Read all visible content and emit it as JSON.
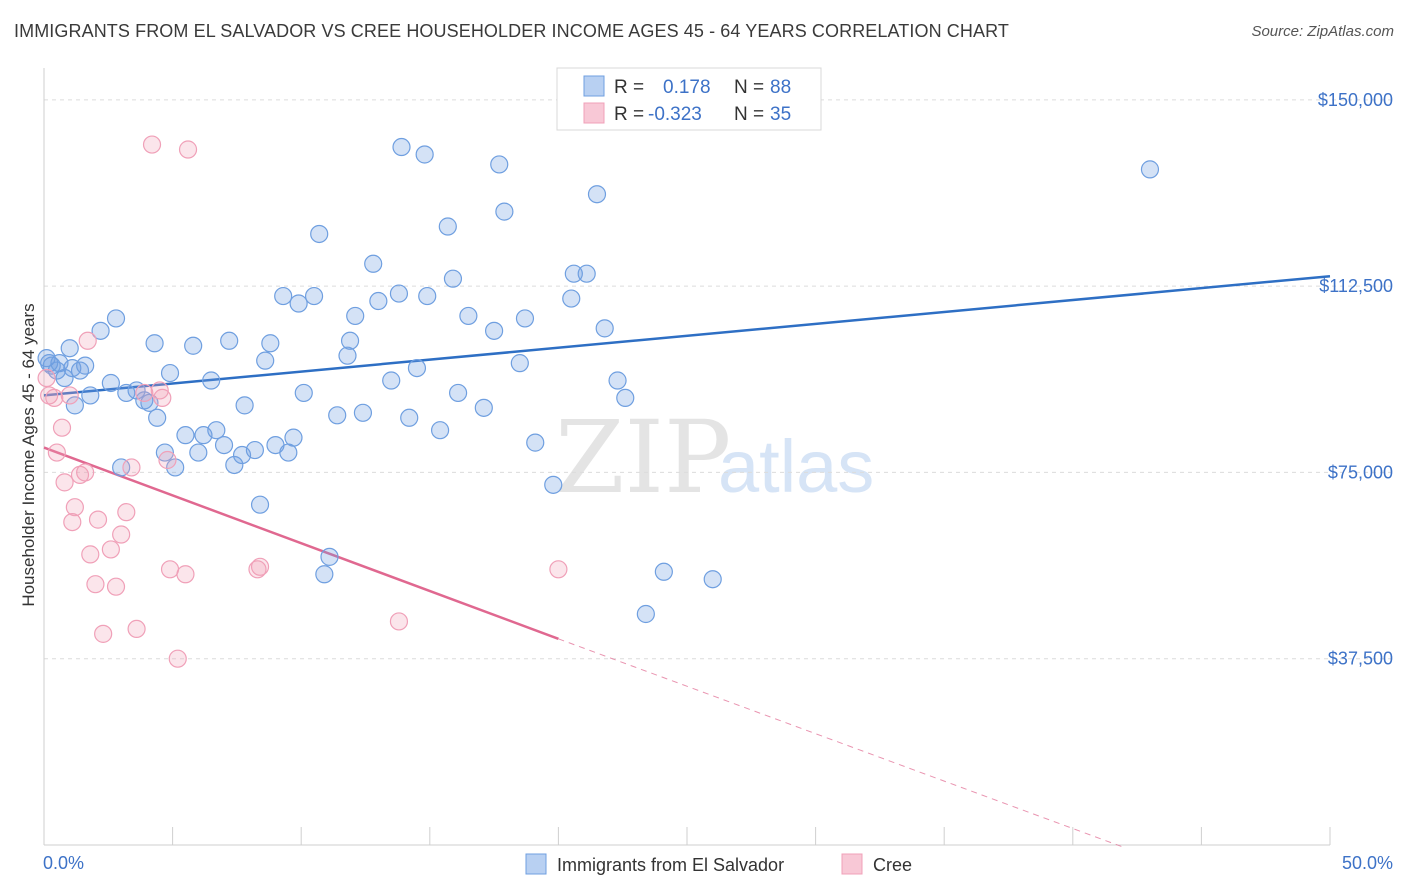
{
  "header": {
    "title": "IMMIGRANTS FROM EL SALVADOR VS CREE HOUSEHOLDER INCOME AGES 45 - 64 YEARS CORRELATION CHART",
    "source": "Source: ZipAtlas.com"
  },
  "watermark": {
    "zip": "ZIP",
    "atlas": "atlas"
  },
  "legend_box": {
    "rows": [
      {
        "r_label": "R =",
        "r_value": "0.178",
        "n_label": "N =",
        "n_value": "88"
      },
      {
        "r_label": "R =",
        "r_value": "-0.323",
        "n_label": "N =",
        "n_value": "35"
      }
    ]
  },
  "chart_data": {
    "type": "scatter",
    "title": "IMMIGRANTS FROM EL SALVADOR VS CREE HOUSEHOLDER INCOME AGES 45 - 64 YEARS CORRELATION CHART",
    "xlabel": "",
    "ylabel": "Householder Income Ages 45 - 64 years",
    "xlim": [
      0,
      50
    ],
    "ylim": [
      0,
      155000
    ],
    "x_tick_labels": [
      "0.0%",
      "50.0%"
    ],
    "y_ticks": [
      37500,
      75000,
      112500,
      150000
    ],
    "y_tick_labels": [
      "$37,500",
      "$75,000",
      "$112,500",
      "$150,000"
    ],
    "grid": true,
    "legend_position": "bottom-center",
    "colors": {
      "el_salvador": "#6f9fe0",
      "el_salvador_line": "#2e6fc4",
      "cree": "#f0a0b8",
      "cree_line": "#e06890",
      "axis_text": "#3d72c7"
    },
    "series": [
      {
        "name": "Immigrants from El Salvador",
        "r": 0.178,
        "n": 88,
        "trend": {
          "x": [
            0,
            50
          ],
          "y": [
            90500,
            114500
          ]
        },
        "points": [
          [
            0.1,
            98000
          ],
          [
            0.3,
            96500
          ],
          [
            0.5,
            95500
          ],
          [
            0.6,
            97000
          ],
          [
            0.8,
            94000
          ],
          [
            1.0,
            100000
          ],
          [
            1.1,
            96000
          ],
          [
            1.2,
            88500
          ],
          [
            1.4,
            95500
          ],
          [
            1.6,
            96500
          ],
          [
            1.8,
            90500
          ],
          [
            2.2,
            103500
          ],
          [
            2.6,
            93000
          ],
          [
            2.8,
            106000
          ],
          [
            3.0,
            76000
          ],
          [
            3.2,
            91000
          ],
          [
            3.6,
            91500
          ],
          [
            3.9,
            89500
          ],
          [
            4.1,
            89000
          ],
          [
            4.3,
            101000
          ],
          [
            4.4,
            86000
          ],
          [
            4.7,
            79000
          ],
          [
            4.9,
            95000
          ],
          [
            5.1,
            76000
          ],
          [
            5.5,
            82500
          ],
          [
            5.8,
            100500
          ],
          [
            6.0,
            79000
          ],
          [
            6.2,
            82500
          ],
          [
            6.5,
            93500
          ],
          [
            6.7,
            83500
          ],
          [
            7.0,
            80500
          ],
          [
            7.2,
            101500
          ],
          [
            7.4,
            76500
          ],
          [
            7.7,
            78500
          ],
          [
            7.8,
            88500
          ],
          [
            8.2,
            79500
          ],
          [
            8.4,
            68500
          ],
          [
            8.6,
            97500
          ],
          [
            8.8,
            101000
          ],
          [
            9.0,
            80500
          ],
          [
            9.3,
            110500
          ],
          [
            9.5,
            79000
          ],
          [
            9.7,
            82000
          ],
          [
            9.9,
            109000
          ],
          [
            10.1,
            91000
          ],
          [
            10.5,
            110500
          ],
          [
            10.7,
            123000
          ],
          [
            10.9,
            54500
          ],
          [
            11.1,
            58000
          ],
          [
            11.4,
            86500
          ],
          [
            11.8,
            98500
          ],
          [
            11.9,
            101500
          ],
          [
            12.1,
            106500
          ],
          [
            12.4,
            87000
          ],
          [
            12.8,
            117000
          ],
          [
            13.0,
            109500
          ],
          [
            13.5,
            93500
          ],
          [
            13.8,
            111000
          ],
          [
            13.9,
            140500
          ],
          [
            14.2,
            86000
          ],
          [
            14.5,
            96000
          ],
          [
            14.8,
            139000
          ],
          [
            14.9,
            110500
          ],
          [
            15.4,
            83500
          ],
          [
            15.7,
            124500
          ],
          [
            15.9,
            114000
          ],
          [
            16.1,
            91000
          ],
          [
            16.5,
            106500
          ],
          [
            17.1,
            88000
          ],
          [
            17.5,
            103500
          ],
          [
            17.7,
            137000
          ],
          [
            17.9,
            127500
          ],
          [
            18.5,
            97000
          ],
          [
            18.7,
            106000
          ],
          [
            19.1,
            81000
          ],
          [
            19.8,
            72500
          ],
          [
            20.5,
            110000
          ],
          [
            20.6,
            115000
          ],
          [
            21.1,
            115000
          ],
          [
            21.5,
            131000
          ],
          [
            21.8,
            104000
          ],
          [
            22.3,
            93500
          ],
          [
            22.6,
            90000
          ],
          [
            23.4,
            46500
          ],
          [
            24.1,
            55000
          ],
          [
            26.0,
            53500
          ],
          [
            43.0,
            136000
          ],
          [
            0.2,
            97000
          ]
        ]
      },
      {
        "name": "Cree",
        "r": -0.323,
        "n": 35,
        "trend": {
          "x": [
            0,
            20
          ],
          "y": [
            80000,
            41500
          ]
        },
        "trend_extension": {
          "x": [
            20,
            42
          ],
          "y": [
            41500,
            -500
          ]
        },
        "points": [
          [
            0.1,
            94000
          ],
          [
            0.2,
            90500
          ],
          [
            0.4,
            90000
          ],
          [
            0.5,
            79000
          ],
          [
            0.7,
            84000
          ],
          [
            0.8,
            73000
          ],
          [
            1.0,
            90500
          ],
          [
            1.1,
            65000
          ],
          [
            1.2,
            68000
          ],
          [
            1.4,
            74500
          ],
          [
            1.6,
            75000
          ],
          [
            1.7,
            101500
          ],
          [
            1.8,
            58500
          ],
          [
            2.0,
            52500
          ],
          [
            2.1,
            65500
          ],
          [
            2.3,
            42500
          ],
          [
            2.6,
            59500
          ],
          [
            2.8,
            52000
          ],
          [
            3.0,
            62500
          ],
          [
            3.2,
            67000
          ],
          [
            3.4,
            76000
          ],
          [
            3.6,
            43500
          ],
          [
            3.9,
            91000
          ],
          [
            4.2,
            141000
          ],
          [
            4.5,
            91500
          ],
          [
            4.6,
            90000
          ],
          [
            4.8,
            77500
          ],
          [
            4.9,
            55500
          ],
          [
            5.2,
            37500
          ],
          [
            5.5,
            54500
          ],
          [
            5.6,
            140000
          ],
          [
            8.3,
            55500
          ],
          [
            8.4,
            56000
          ],
          [
            13.8,
            45000
          ],
          [
            20.0,
            55500
          ]
        ]
      }
    ]
  },
  "bottom_legend": {
    "items": [
      {
        "label": "Immigrants from El Salvador"
      },
      {
        "label": "Cree"
      }
    ]
  }
}
